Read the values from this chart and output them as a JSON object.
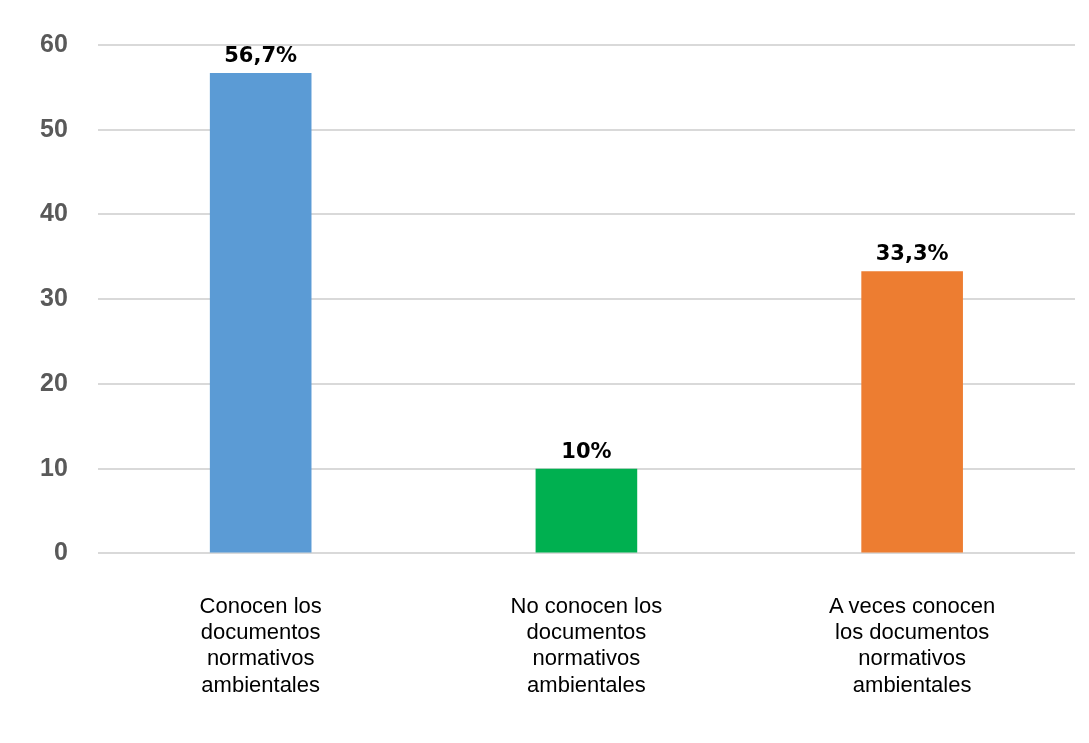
{
  "chart_data": {
    "type": "bar",
    "categories": [
      "Conocen los documentos normativos ambientales",
      "No conocen los documentos normativos ambientales",
      "A veces conocen los documentos normativos ambientales"
    ],
    "values": [
      56.7,
      10,
      33.3
    ],
    "colors": [
      "#5b9bd5",
      "#00b050",
      "#ed7d31"
    ],
    "value_labels": [
      "56,7%",
      "10%",
      "33,3%"
    ],
    "ylim": [
      0,
      60
    ],
    "yticks": [
      0,
      10,
      20,
      30,
      40,
      50,
      60
    ],
    "grid": "y",
    "legend": false
  }
}
